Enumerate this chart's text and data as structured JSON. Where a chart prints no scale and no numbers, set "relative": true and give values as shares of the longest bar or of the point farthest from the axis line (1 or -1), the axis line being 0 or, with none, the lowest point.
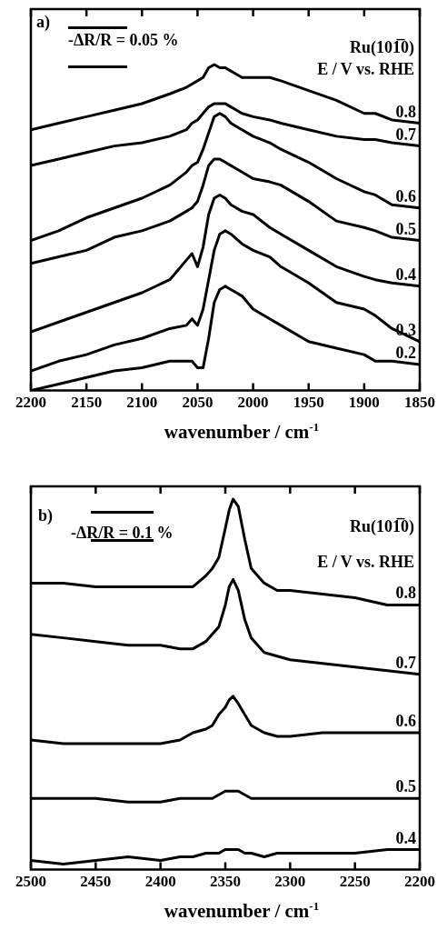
{
  "chart_data": [
    {
      "type": "line",
      "title": "Ru(101̅0)",
      "legend_title": "E / V vs. RHE",
      "xlabel": "wavenumber / cm$^{-1}$",
      "annotations": [
        "a)",
        "-ΔR/R = 0.05 %"
      ],
      "x": [
        2200,
        2175,
        2150,
        2125,
        2100,
        2075,
        2060,
        2055,
        2050,
        2045,
        2040,
        2035,
        2030,
        2025,
        2020,
        2010,
        2000,
        1985,
        1975,
        1950,
        1925,
        1900,
        1890,
        1875,
        1850
      ],
      "xlim": [
        2200,
        1850
      ],
      "xticks": [
        2200,
        2150,
        2100,
        2050,
        2000,
        1950,
        1900,
        1850
      ],
      "relative": true,
      "marker": "none",
      "series": [
        {
          "name": "0.8",
          "color": "#000000",
          "values": [
            0.8,
            0.82,
            0.84,
            0.86,
            0.88,
            0.91,
            0.93,
            0.94,
            0.95,
            0.96,
            0.99,
            1,
            0.99,
            0.99,
            0.98,
            0.96,
            0.96,
            0.96,
            0.95,
            0.92,
            0.89,
            0.85,
            0.85,
            0.83,
            0.82
          ]
        },
        {
          "name": "0.7",
          "color": "#000000",
          "values": [
            0.69,
            0.71,
            0.73,
            0.75,
            0.76,
            0.78,
            0.8,
            0.82,
            0.83,
            0.85,
            0.87,
            0.88,
            0.88,
            0.88,
            0.87,
            0.85,
            0.84,
            0.83,
            0.82,
            0.8,
            0.78,
            0.77,
            0.77,
            0.76,
            0.75
          ]
        },
        {
          "name": "0.6",
          "color": "#000000",
          "values": [
            0.46,
            0.49,
            0.53,
            0.56,
            0.59,
            0.63,
            0.67,
            0.69,
            0.7,
            0.74,
            0.79,
            0.84,
            0.85,
            0.84,
            0.82,
            0.8,
            0.78,
            0.76,
            0.74,
            0.7,
            0.65,
            0.61,
            0.6,
            0.57,
            0.56
          ]
        },
        {
          "name": "0.5",
          "color": "#000000",
          "values": [
            0.39,
            0.41,
            0.43,
            0.47,
            0.49,
            0.52,
            0.55,
            0.56,
            0.58,
            0.63,
            0.69,
            0.71,
            0.71,
            0.7,
            0.69,
            0.67,
            0.65,
            0.64,
            0.63,
            0.58,
            0.52,
            0.5,
            0.49,
            0.47,
            0.46
          ]
        },
        {
          "name": "0.4",
          "color": "#000000",
          "values": [
            0.18,
            0.21,
            0.24,
            0.27,
            0.3,
            0.34,
            0.4,
            0.42,
            0.38,
            0.44,
            0.54,
            0.59,
            0.6,
            0.59,
            0.57,
            0.55,
            0.54,
            0.5,
            0.48,
            0.43,
            0.38,
            0.35,
            0.34,
            0.33,
            0.32
          ]
        },
        {
          "name": "0.3",
          "color": "#000000",
          "values": [
            0.06,
            0.09,
            0.11,
            0.14,
            0.16,
            0.19,
            0.2,
            0.22,
            0.2,
            0.25,
            0.34,
            0.43,
            0.48,
            0.49,
            0.48,
            0.45,
            0.43,
            0.41,
            0.38,
            0.33,
            0.27,
            0.25,
            0.23,
            0.19,
            0.15
          ]
        },
        {
          "name": "0.2",
          "color": "#000000",
          "values": [
            0,
            0.02,
            0.04,
            0.06,
            0.07,
            0.09,
            0.09,
            0.09,
            0.07,
            0.07,
            0.16,
            0.27,
            0.31,
            0.32,
            0.31,
            0.29,
            0.25,
            0.22,
            0.2,
            0.15,
            0.13,
            0.11,
            0.09,
            0.09,
            0.08
          ]
        }
      ]
    },
    {
      "type": "line",
      "title": "Ru(101̅0)",
      "legend_title": "E / V vs. RHE",
      "xlabel": "wavenumber / cm$^{-1}$",
      "annotations": [
        "b)",
        "-ΔR/R = 0.1 %"
      ],
      "x": [
        2500,
        2475,
        2450,
        2425,
        2400,
        2385,
        2375,
        2365,
        2360,
        2355,
        2350,
        2347,
        2344,
        2340,
        2335,
        2330,
        2320,
        2310,
        2300,
        2275,
        2250,
        2225,
        2200
      ],
      "xlim": [
        2500,
        2200
      ],
      "xticks": [
        2500,
        2450,
        2400,
        2350,
        2300,
        2250,
        2200
      ],
      "relative": true,
      "marker": "none",
      "series": [
        {
          "name": "0.8",
          "color": "#000000",
          "values": [
            0.77,
            0.77,
            0.76,
            0.76,
            0.76,
            0.76,
            0.76,
            0.79,
            0.81,
            0.84,
            0.92,
            0.97,
            1,
            0.98,
            0.89,
            0.81,
            0.77,
            0.75,
            0.75,
            0.74,
            0.73,
            0.71,
            0.71
          ]
        },
        {
          "name": "0.7",
          "color": "#000000",
          "values": [
            0.63,
            0.62,
            0.61,
            0.6,
            0.6,
            0.59,
            0.59,
            0.61,
            0.63,
            0.65,
            0.71,
            0.76,
            0.78,
            0.75,
            0.67,
            0.62,
            0.58,
            0.57,
            0.56,
            0.55,
            0.54,
            0.53,
            0.52
          ]
        },
        {
          "name": "0.6",
          "color": "#000000",
          "values": [
            0.34,
            0.33,
            0.33,
            0.33,
            0.33,
            0.34,
            0.36,
            0.37,
            0.38,
            0.41,
            0.43,
            0.45,
            0.46,
            0.44,
            0.41,
            0.38,
            0.36,
            0.35,
            0.35,
            0.36,
            0.36,
            0.36,
            0.36
          ]
        },
        {
          "name": "0.5",
          "color": "#000000",
          "values": [
            0.18,
            0.18,
            0.18,
            0.17,
            0.17,
            0.18,
            0.18,
            0.18,
            0.18,
            0.19,
            0.2,
            0.2,
            0.2,
            0.2,
            0.19,
            0.18,
            0.18,
            0.18,
            0.18,
            0.18,
            0.18,
            0.18,
            0.18
          ]
        },
        {
          "name": "0.4",
          "color": "#000000",
          "values": [
            0.01,
            0,
            0.01,
            0.02,
            0.01,
            0.02,
            0.02,
            0.03,
            0.03,
            0.03,
            0.04,
            0.04,
            0.04,
            0.04,
            0.03,
            0.03,
            0.02,
            0.03,
            0.03,
            0.03,
            0.03,
            0.04,
            0.04
          ]
        }
      ]
    }
  ]
}
